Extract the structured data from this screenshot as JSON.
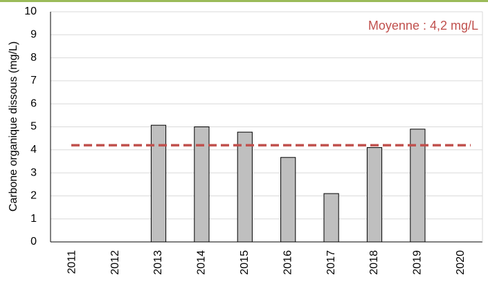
{
  "chart_data": {
    "type": "bar",
    "y_label": "Carbone organique dissous (mg/L)",
    "categories": [
      "2011",
      "2012",
      "2013",
      "2014",
      "2015",
      "2016",
      "2017",
      "2018",
      "2019",
      "2020"
    ],
    "values": [
      null,
      null,
      5.07,
      5.0,
      4.77,
      3.67,
      2.1,
      4.1,
      4.9,
      null
    ],
    "color": "#bfbfbf",
    "ylim": [
      0,
      10
    ],
    "yticks": [
      0,
      1,
      2,
      3,
      4,
      5,
      6,
      7,
      8,
      9,
      10
    ],
    "grid": true,
    "mean": {
      "text": "Moyenne : 4,2 mg/L",
      "value": 4.2,
      "color": "#c0504d"
    }
  }
}
